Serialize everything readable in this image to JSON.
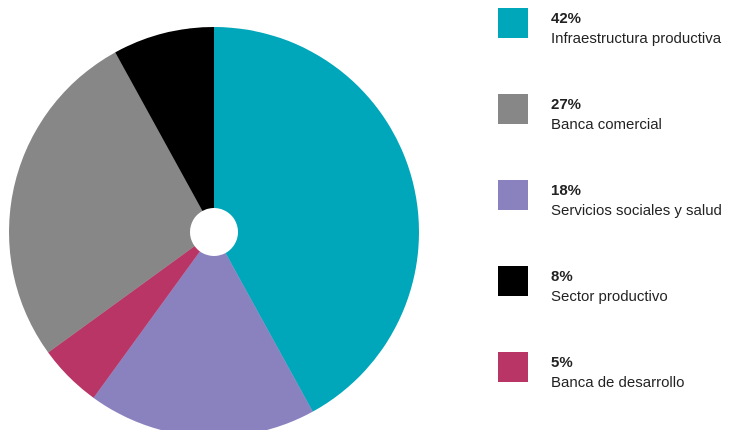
{
  "chart_data": {
    "type": "pie",
    "categories": [
      "Infraestructura productiva",
      "Servicios sociales y salud",
      "Banca de desarrollo",
      "Banca comercial",
      "Sector productivo"
    ],
    "values": [
      42,
      18,
      5,
      27,
      8
    ],
    "value_labels": [
      "42%",
      "18%",
      "5%",
      "27%",
      "8%"
    ],
    "colors": [
      "#00a6b9",
      "#8a82bf",
      "#b83565",
      "#878787",
      "#000000"
    ],
    "start_angle": 0,
    "direction": "clockwise",
    "legend": "right",
    "legend_sort": "descending"
  }
}
